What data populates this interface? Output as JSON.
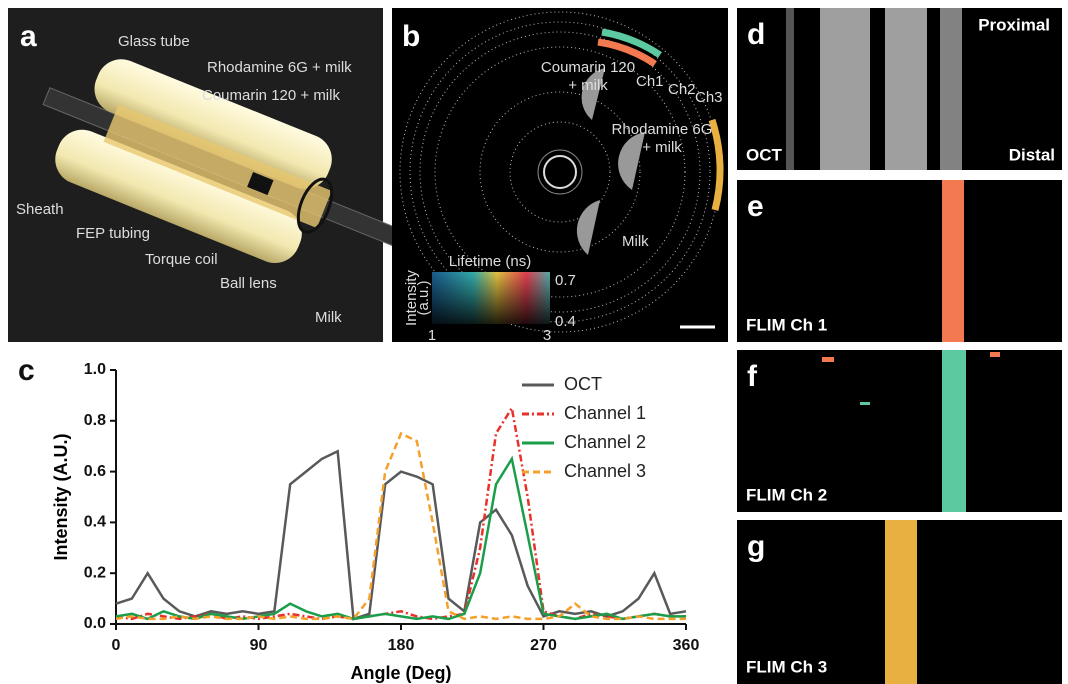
{
  "panels": {
    "a": {
      "label": "a",
      "annotations": [
        "Glass tube",
        "Rhodamine 6G + milk",
        "Coumarin 120 + milk",
        "Sheath",
        "FEP tubing",
        "Torque coil",
        "Ball lens",
        "Milk"
      ]
    },
    "b": {
      "label": "b",
      "annotations": [
        "Coumarin 120",
        "+ milk",
        "Ch1",
        "Ch2",
        "Ch3",
        "Rhodamine 6G",
        "+ milk",
        "Milk"
      ],
      "colorbar": {
        "title": "Lifetime (ns)",
        "axis_title": [
          "Intensity",
          "(a.u.)"
        ],
        "top": "0.7",
        "bottom": "0.4",
        "left": "1",
        "right": "3"
      }
    },
    "c": {
      "label": "c"
    },
    "d": {
      "label": "d",
      "annotations": [
        "Proximal",
        "OCT",
        "Distal"
      ]
    },
    "e": {
      "label": "e",
      "annotations": [
        "FLIM Ch 1"
      ]
    },
    "f": {
      "label": "f",
      "annotations": [
        "FLIM Ch 2"
      ]
    },
    "g": {
      "label": "g",
      "annotations": [
        "FLIM Ch 3"
      ]
    }
  },
  "chart_data": {
    "type": "line",
    "x_label": "Angle (Deg)",
    "y_label": "Intensity (A.U.)",
    "x": [
      0,
      10,
      20,
      30,
      40,
      50,
      60,
      70,
      80,
      90,
      100,
      110,
      120,
      130,
      140,
      150,
      160,
      170,
      180,
      190,
      200,
      210,
      220,
      230,
      240,
      250,
      260,
      270,
      280,
      290,
      300,
      310,
      320,
      330,
      340,
      350,
      360
    ],
    "series": [
      {
        "name": "OCT",
        "color": "#595959",
        "dash": "solid",
        "values": [
          0.08,
          0.1,
          0.2,
          0.1,
          0.05,
          0.03,
          0.05,
          0.04,
          0.05,
          0.04,
          0.05,
          0.55,
          0.6,
          0.65,
          0.68,
          0.02,
          0.04,
          0.55,
          0.6,
          0.58,
          0.55,
          0.1,
          0.05,
          0.4,
          0.45,
          0.35,
          0.15,
          0.03,
          0.05,
          0.04,
          0.05,
          0.03,
          0.05,
          0.1,
          0.2,
          0.04,
          0.05
        ]
      },
      {
        "name": "Channel 1",
        "color": "#e8312b",
        "dash": "dashdot",
        "values": [
          0.03,
          0.02,
          0.04,
          0.03,
          0.02,
          0.03,
          0.04,
          0.02,
          0.03,
          0.02,
          0.03,
          0.04,
          0.03,
          0.02,
          0.03,
          0.02,
          0.03,
          0.04,
          0.05,
          0.03,
          0.02,
          0.03,
          0.04,
          0.3,
          0.75,
          0.85,
          0.5,
          0.05,
          0.03,
          0.02,
          0.04,
          0.03,
          0.02,
          0.03,
          0.04,
          0.03,
          0.03
        ]
      },
      {
        "name": "Channel 2",
        "color": "#1a9e4a",
        "dash": "solid",
        "values": [
          0.03,
          0.04,
          0.02,
          0.05,
          0.03,
          0.02,
          0.04,
          0.03,
          0.02,
          0.03,
          0.04,
          0.08,
          0.05,
          0.03,
          0.04,
          0.02,
          0.03,
          0.04,
          0.03,
          0.02,
          0.03,
          0.02,
          0.04,
          0.2,
          0.55,
          0.65,
          0.35,
          0.04,
          0.03,
          0.02,
          0.03,
          0.04,
          0.02,
          0.03,
          0.04,
          0.03,
          0.03
        ]
      },
      {
        "name": "Channel 3",
        "color": "#f4a02a",
        "dash": "dashed",
        "values": [
          0.02,
          0.03,
          0.02,
          0.02,
          0.03,
          0.02,
          0.03,
          0.02,
          0.02,
          0.03,
          0.02,
          0.03,
          0.02,
          0.02,
          0.03,
          0.02,
          0.1,
          0.6,
          0.75,
          0.72,
          0.4,
          0.05,
          0.02,
          0.03,
          0.02,
          0.03,
          0.02,
          0.02,
          0.03,
          0.08,
          0.03,
          0.02,
          0.02,
          0.03,
          0.02,
          0.02,
          0.02
        ]
      }
    ],
    "xlim": [
      0,
      360
    ],
    "xticks": [
      0,
      90,
      180,
      270,
      360
    ],
    "ylim": [
      0,
      1
    ],
    "yticks": [
      {
        "value": 0,
        "label": "0.0"
      },
      0.2,
      0.4,
      0.6,
      0.8,
      {
        "value": 1,
        "label": "1.0"
      }
    ],
    "legend": "upper-right"
  }
}
